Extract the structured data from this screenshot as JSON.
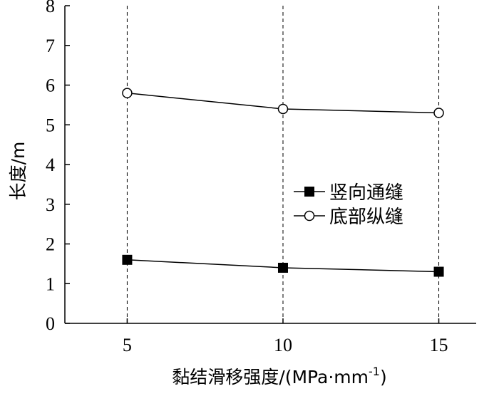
{
  "chart_data": {
    "type": "line",
    "x": [
      5,
      10,
      15
    ],
    "x_ticks": [
      "5",
      "10",
      "15"
    ],
    "y_ticks": [
      "0",
      "1",
      "2",
      "3",
      "4",
      "5",
      "6",
      "7",
      "8"
    ],
    "ylim": [
      0,
      8
    ],
    "xlim": [
      3,
      16.2
    ],
    "xlabel": "黏结滑移强度/(MPa·mm",
    "xlabel_sup": "-1",
    "xlabel_tail": ")",
    "ylabel": "长度/m",
    "grid": "vertical dashed lines at x ticks",
    "legend_placement": "center-right",
    "series": [
      {
        "name": "竖向通缝",
        "marker": "filled-square",
        "color": "#000000",
        "values": [
          1.6,
          1.4,
          1.3
        ]
      },
      {
        "name": "底部纵缝",
        "marker": "open-circle",
        "color": "#000000",
        "values": [
          5.8,
          5.4,
          5.3
        ]
      }
    ]
  }
}
